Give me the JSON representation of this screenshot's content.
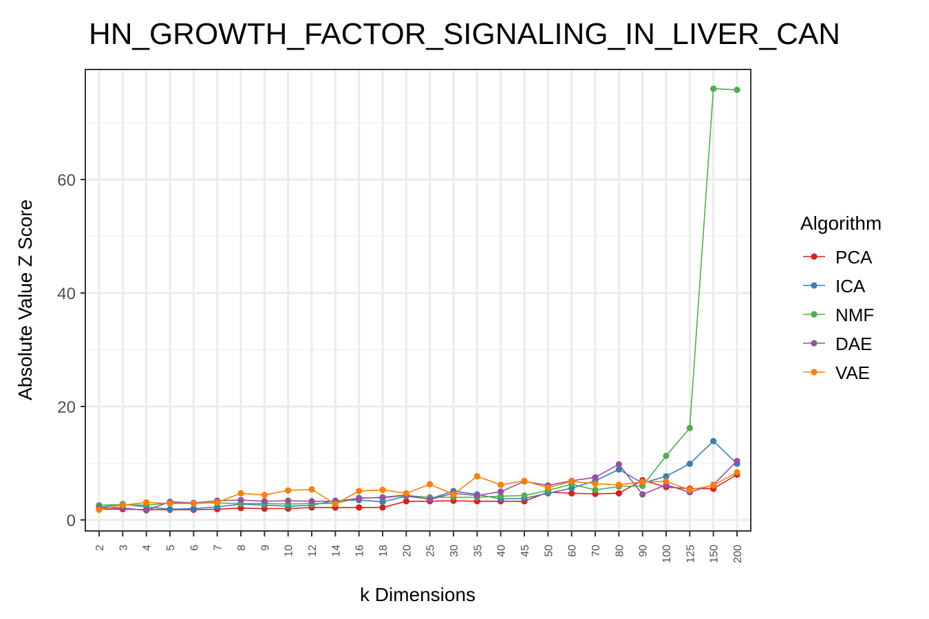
{
  "chart_data": {
    "type": "line",
    "title": "HN_GROWTH_FACTOR_SIGNALING_IN_LIVER_CAN",
    "xlabel": "k Dimensions",
    "ylabel": "Absolute Value Z Score",
    "categories": [
      "2",
      "3",
      "4",
      "5",
      "6",
      "7",
      "8",
      "9",
      "10",
      "12",
      "14",
      "16",
      "18",
      "20",
      "25",
      "30",
      "35",
      "40",
      "45",
      "50",
      "60",
      "70",
      "80",
      "90",
      "100",
      "125",
      "150",
      "200"
    ],
    "yticks": [
      0,
      20,
      40,
      60
    ],
    "ylim": [
      -2,
      80
    ],
    "grid": true,
    "legend": {
      "title": "Algorithm",
      "position": "right"
    },
    "series": [
      {
        "name": "PCA",
        "color": "#e41a1c",
        "values": [
          1.9,
          1.9,
          1.8,
          1.8,
          1.8,
          1.9,
          2.1,
          2.0,
          2.0,
          2.2,
          2.2,
          2.2,
          2.2,
          3.3,
          3.3,
          3.4,
          3.3,
          3.3,
          3.3,
          4.9,
          4.7,
          4.6,
          4.7,
          7.0,
          5.8,
          5.5,
          5.5,
          8.0
        ]
      },
      {
        "name": "ICA",
        "color": "#377eb8",
        "values": [
          2.2,
          2.8,
          2.3,
          1.9,
          2.0,
          2.3,
          2.8,
          2.6,
          2.4,
          2.6,
          3.4,
          3.5,
          3.2,
          4.2,
          3.7,
          5.1,
          4.5,
          3.7,
          3.8,
          4.7,
          5.6,
          6.9,
          8.9,
          6.5,
          7.7,
          9.9,
          13.9,
          9.9
        ]
      },
      {
        "name": "NMF",
        "color": "#4daf4a",
        "values": [
          2.6,
          2.7,
          2.6,
          3.0,
          3.0,
          3.0,
          2.9,
          2.9,
          2.8,
          2.9,
          2.9,
          3.9,
          3.9,
          4.3,
          4.0,
          4.0,
          4.0,
          4.2,
          4.3,
          5.2,
          6.3,
          5.3,
          5.9,
          6.0,
          11.3,
          16.2,
          76.0,
          75.8
        ]
      },
      {
        "name": "DAE",
        "color": "#984ea3",
        "values": [
          2.2,
          2.1,
          1.7,
          3.2,
          3.0,
          3.4,
          3.5,
          3.3,
          3.4,
          3.3,
          3.3,
          3.8,
          4.0,
          4.4,
          3.6,
          4.7,
          4.3,
          5.0,
          6.8,
          6.1,
          6.9,
          7.5,
          9.8,
          4.5,
          6.2,
          4.9,
          6.2,
          10.4
        ]
      },
      {
        "name": "VAE",
        "color": "#ff7f00",
        "values": [
          1.8,
          2.6,
          3.1,
          2.9,
          2.9,
          3.1,
          4.7,
          4.4,
          5.2,
          5.4,
          2.8,
          5.1,
          5.3,
          4.7,
          6.3,
          4.5,
          7.7,
          6.2,
          6.9,
          5.7,
          6.8,
          6.4,
          6.2,
          6.7,
          6.8,
          5.3,
          6.1,
          8.4
        ]
      }
    ]
  }
}
